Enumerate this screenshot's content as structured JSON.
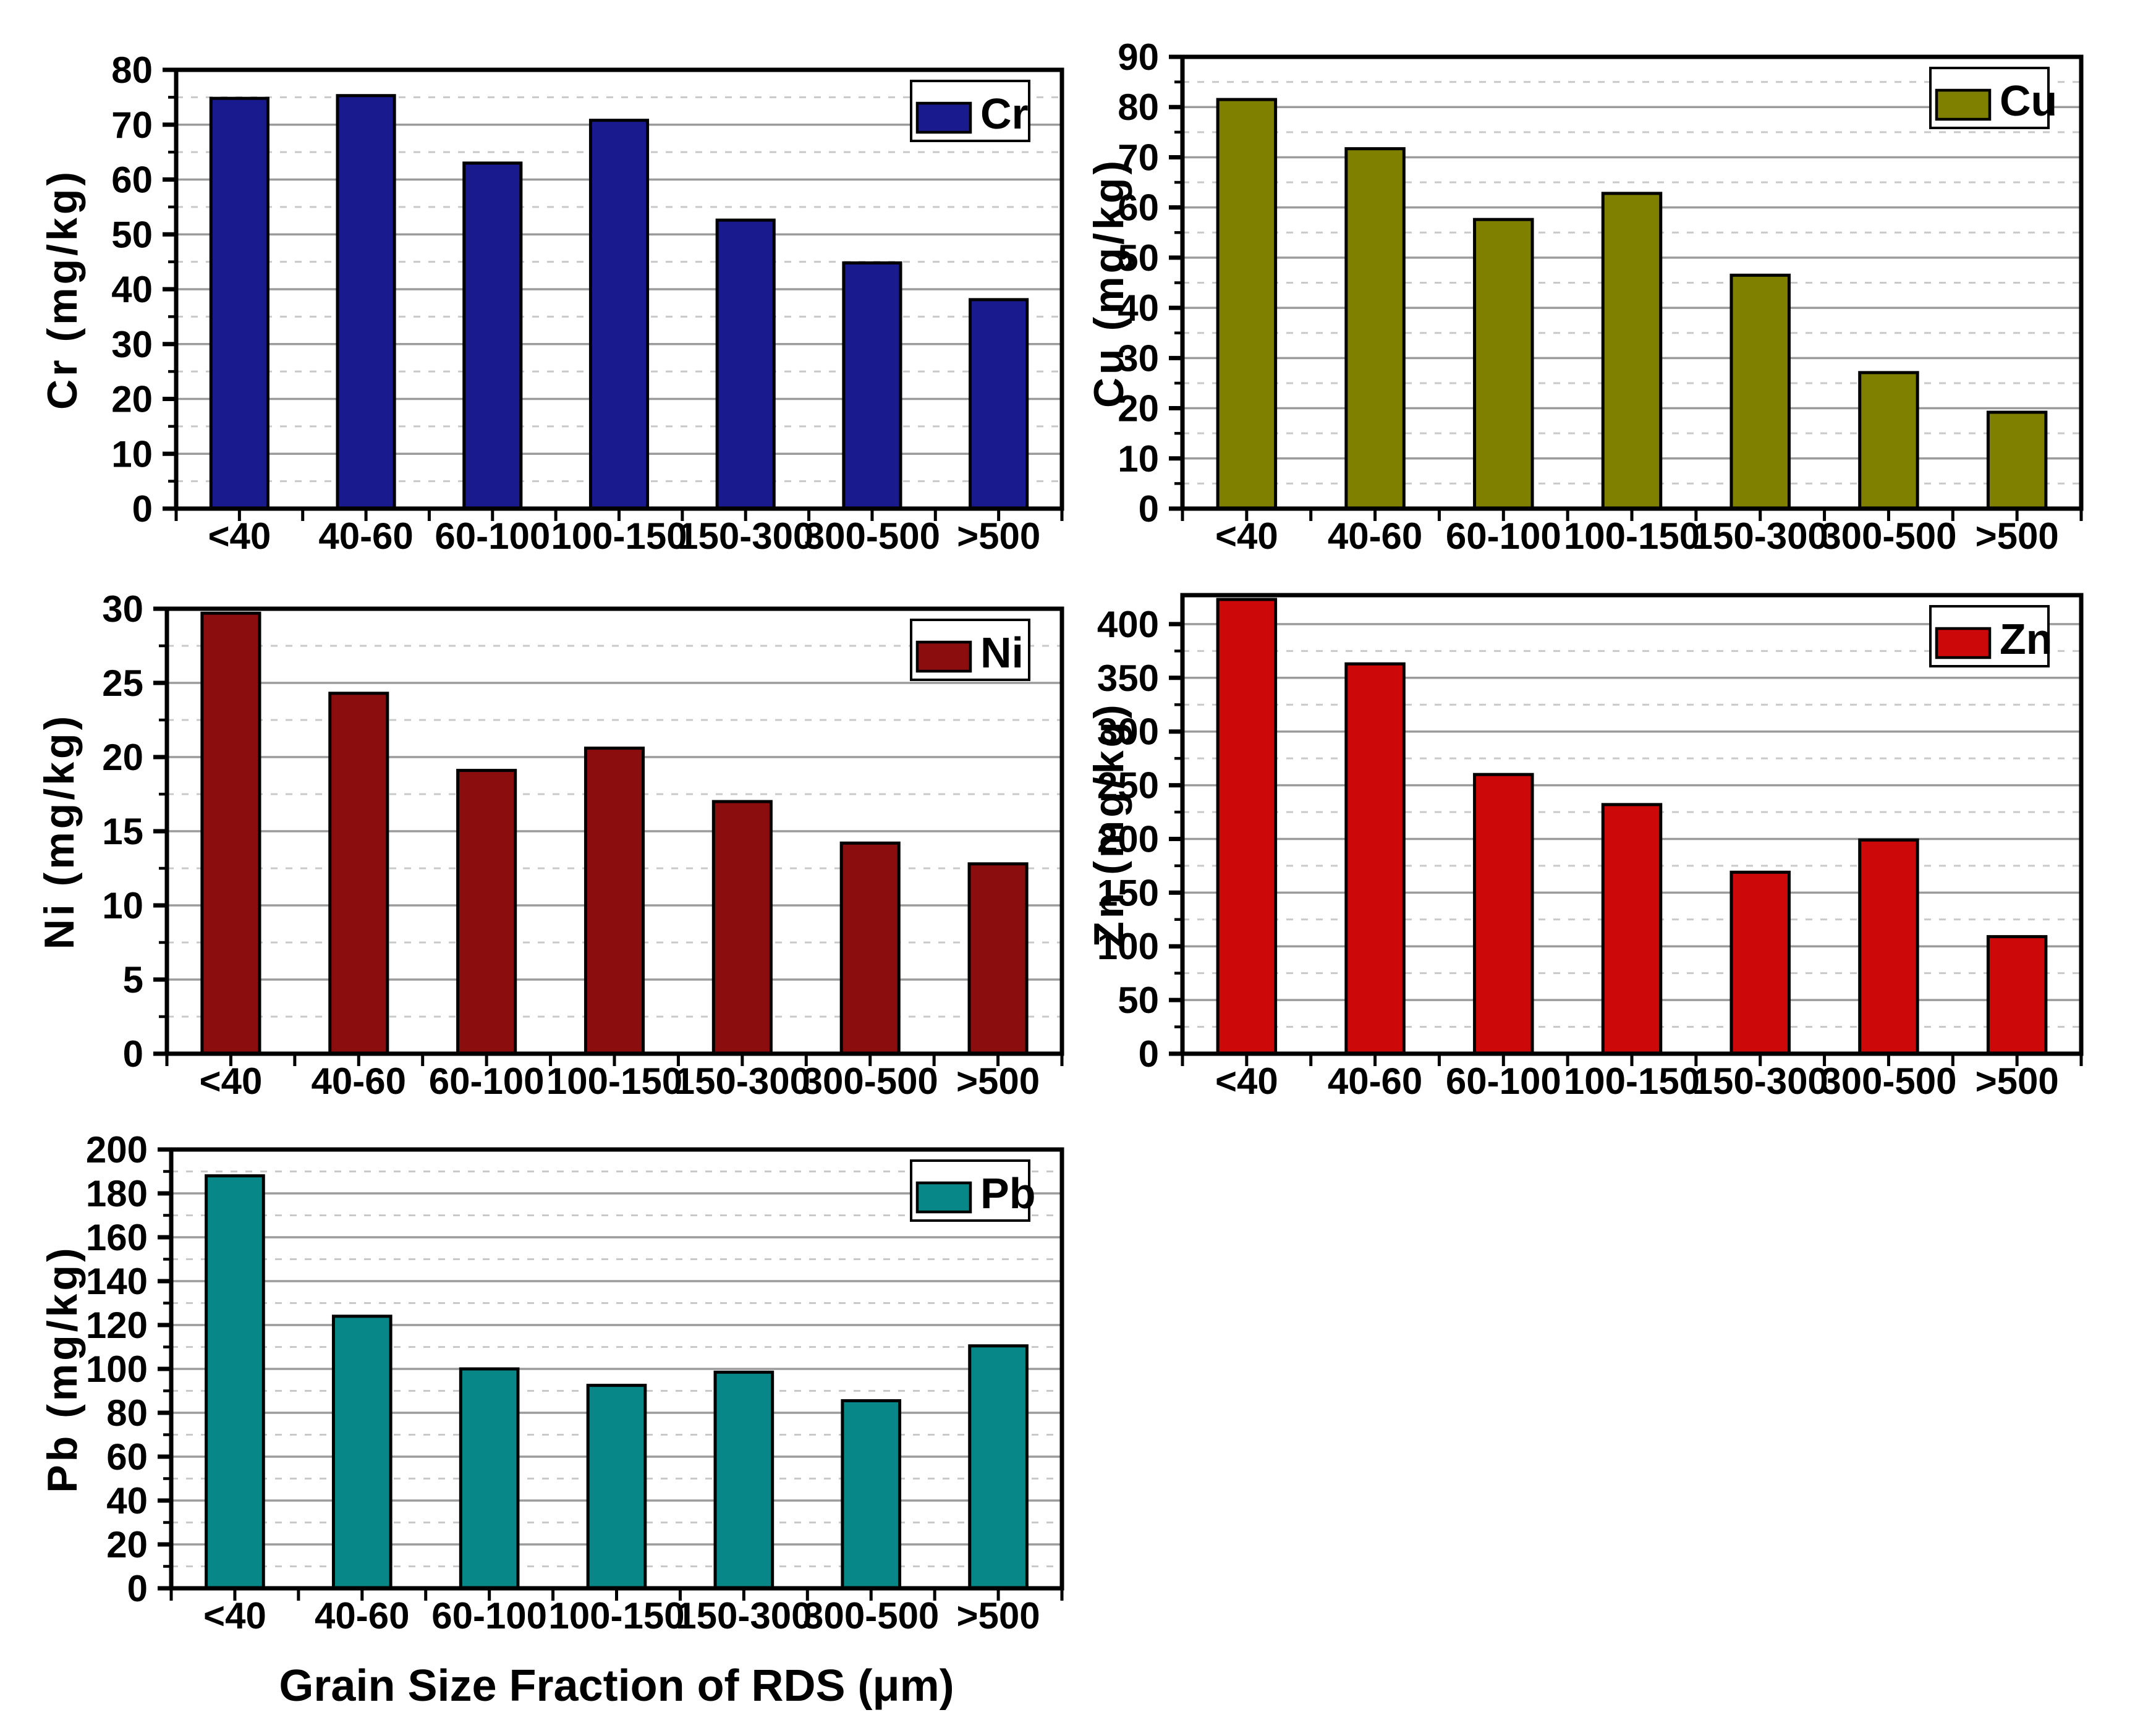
{
  "figure": {
    "description": "Five-panel bar chart figure of heavy metal concentrations in road-deposited sediment grain size fractions",
    "x_axis_title": "Grain Size Fraction of RDS (μm)",
    "categories": [
      "<40",
      "40-60",
      "60-100",
      "100-150",
      "150-300",
      "300-500",
      ">500"
    ],
    "background_color": "#FFFFFF",
    "frame_color": "#000000",
    "grid_major_color": "#9B9B9B",
    "grid_minor_color": "#C9C9C9",
    "grid_style": "horizontal only: solid major lines, dashed minor lines"
  },
  "chart_data": [
    {
      "type": "bar",
      "panel": "top-left",
      "legend": "Cr",
      "legend_position": "top-right",
      "ylabel": "Cr (mg/kg)",
      "xlabel": "",
      "categories": [
        "<40",
        "40-60",
        "60-100",
        "100-150",
        "150-300",
        "300-500",
        ">500"
      ],
      "values": [
        74.8,
        75.3,
        63.0,
        70.8,
        52.6,
        44.8,
        38.1
      ],
      "ylim": [
        0,
        80
      ],
      "ytick_major": 10,
      "ytick_minor": 5,
      "bar_color": "#1A1A8F"
    },
    {
      "type": "bar",
      "panel": "top-right",
      "legend": "Cu",
      "legend_position": "top-right",
      "ylabel": "Cu (mg/kg)",
      "xlabel": "",
      "categories": [
        "<40",
        "40-60",
        "60-100",
        "100-150",
        "150-300",
        "300-500",
        ">500"
      ],
      "values": [
        81.5,
        71.7,
        57.6,
        62.8,
        46.5,
        27.1,
        19.2
      ],
      "ylim": [
        0,
        90
      ],
      "ytick_major": 10,
      "ytick_minor": 5,
      "bar_color": "#7F7F00"
    },
    {
      "type": "bar",
      "panel": "middle-left",
      "legend": "Ni",
      "legend_position": "top-right",
      "ylabel": "Ni (mg/kg)",
      "xlabel": "",
      "categories": [
        "<40",
        "40-60",
        "60-100",
        "100-150",
        "150-300",
        "300-500",
        ">500"
      ],
      "values": [
        29.7,
        24.3,
        19.1,
        20.6,
        17.0,
        14.2,
        12.8
      ],
      "ylim": [
        0,
        30
      ],
      "ytick_major": 5,
      "ytick_minor": 2.5,
      "bar_color": "#8B0D0D"
    },
    {
      "type": "bar",
      "panel": "middle-right",
      "legend": "Zn",
      "legend_position": "top-right",
      "ylabel": "Zn (mg/kg)",
      "xlabel": "",
      "categories": [
        "<40",
        "40-60",
        "60-100",
        "100-150",
        "150-300",
        "300-500",
        ">500"
      ],
      "values": [
        423,
        363,
        260,
        232,
        169,
        199,
        109
      ],
      "ylim": [
        0,
        427
      ],
      "ytick_major": 50,
      "ytick_minor": 25,
      "bar_color": "#CC0808"
    },
    {
      "type": "bar",
      "panel": "bottom-left",
      "legend": "Pb",
      "legend_position": "top-right",
      "ylabel": "Pb (mg/kg)",
      "xlabel": "Grain Size Fraction of RDS (μm)",
      "categories": [
        "<40",
        "40-60",
        "60-100",
        "100-150",
        "150-300",
        "300-500",
        ">500"
      ],
      "values": [
        188,
        124,
        100,
        92.5,
        98.5,
        85.5,
        110.5
      ],
      "ylim": [
        0,
        200
      ],
      "ytick_major": 20,
      "ytick_minor": 10,
      "bar_color": "#078787"
    }
  ]
}
